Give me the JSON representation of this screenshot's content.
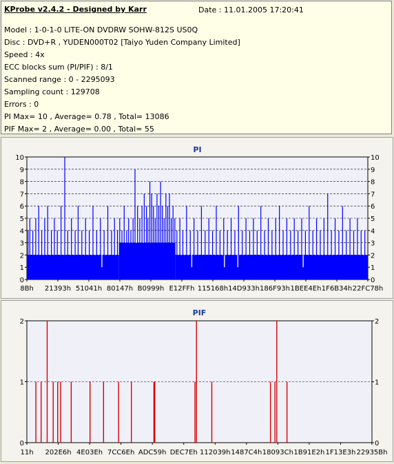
{
  "info": {
    "title": "KProbe v2.4.2 - Designed by Karr",
    "date": "Date : 11.01.2005 17:20:41",
    "lines": [
      "Model : 1-0-1-0 LITE-ON DVDRW SOHW-812S  US0Q",
      "Disc : DVD+R , YUDEN000T02 [Taiyo Yuden Company Limited]",
      "Speed : 4x",
      "ECC blocks sum (PI/PIF) : 8/1",
      "Scanned range : 0 - 2295093",
      "Sampling count : 129708",
      "Errors : 0",
      "PI Max= 10 , Average= 0.78 , Total= 13086",
      "PIF Max= 2 , Average= 0.00 , Total= 55"
    ]
  },
  "colors": {
    "pi": "#0000ff",
    "pif": "#d40000",
    "plot_bg": "#f0f0f8",
    "grid": "#000000",
    "title": "#1a3a9a"
  },
  "chart_data": [
    {
      "type": "bar",
      "title": "PI",
      "ylim": [
        0,
        10
      ],
      "yticks": [
        0,
        1,
        2,
        3,
        4,
        5,
        6,
        7,
        8,
        9,
        10
      ],
      "grid": true,
      "xticks": [
        "8Bh",
        "21393h",
        "51041h",
        "80147h",
        "B0999h",
        "E12FFh",
        "115168h",
        "14D933h",
        "186F93h",
        "1BEE4Eh",
        "1F6B34h",
        "22FC78h"
      ],
      "x_range": [
        0,
        2295093
      ],
      "baseline_levels": [
        {
          "x": [
            0,
            620000
          ],
          "value": 2
        },
        {
          "x": [
            620000,
            1000000
          ],
          "value": 3
        },
        {
          "x": [
            1000000,
            2295093
          ],
          "value": 2
        }
      ],
      "spikes": [
        {
          "x": 8000,
          "value": 4
        },
        {
          "x": 20000,
          "value": 5
        },
        {
          "x": 40000,
          "value": 4
        },
        {
          "x": 60000,
          "value": 5
        },
        {
          "x": 80000,
          "value": 6
        },
        {
          "x": 100000,
          "value": 4
        },
        {
          "x": 120000,
          "value": 5
        },
        {
          "x": 140000,
          "value": 6
        },
        {
          "x": 165000,
          "value": 4
        },
        {
          "x": 185000,
          "value": 5
        },
        {
          "x": 205000,
          "value": 4
        },
        {
          "x": 230000,
          "value": 6
        },
        {
          "x": 255000,
          "value": 10
        },
        {
          "x": 275000,
          "value": 4
        },
        {
          "x": 300000,
          "value": 5
        },
        {
          "x": 325000,
          "value": 4
        },
        {
          "x": 345000,
          "value": 6
        },
        {
          "x": 370000,
          "value": 4
        },
        {
          "x": 395000,
          "value": 5
        },
        {
          "x": 420000,
          "value": 4
        },
        {
          "x": 445000,
          "value": 6
        },
        {
          "x": 470000,
          "value": 4
        },
        {
          "x": 495000,
          "value": 5
        },
        {
          "x": 520000,
          "value": 4
        },
        {
          "x": 545000,
          "value": 6
        },
        {
          "x": 570000,
          "value": 4
        },
        {
          "x": 590000,
          "value": 5
        },
        {
          "x": 610000,
          "value": 4
        },
        {
          "x": 625000,
          "value": 5
        },
        {
          "x": 640000,
          "value": 4
        },
        {
          "x": 655000,
          "value": 6
        },
        {
          "x": 672000,
          "value": 4
        },
        {
          "x": 685000,
          "value": 5
        },
        {
          "x": 700000,
          "value": 4
        },
        {
          "x": 715000,
          "value": 5
        },
        {
          "x": 728000,
          "value": 9
        },
        {
          "x": 745000,
          "value": 6
        },
        {
          "x": 760000,
          "value": 5
        },
        {
          "x": 775000,
          "value": 6
        },
        {
          "x": 790000,
          "value": 7
        },
        {
          "x": 805000,
          "value": 6
        },
        {
          "x": 815000,
          "value": 5
        },
        {
          "x": 828000,
          "value": 8
        },
        {
          "x": 840000,
          "value": 7
        },
        {
          "x": 852000,
          "value": 6
        },
        {
          "x": 864000,
          "value": 5
        },
        {
          "x": 876000,
          "value": 7
        },
        {
          "x": 888000,
          "value": 6
        },
        {
          "x": 900000,
          "value": 8
        },
        {
          "x": 912000,
          "value": 6
        },
        {
          "x": 924000,
          "value": 5
        },
        {
          "x": 936000,
          "value": 7
        },
        {
          "x": 948000,
          "value": 6
        },
        {
          "x": 960000,
          "value": 7
        },
        {
          "x": 972000,
          "value": 5
        },
        {
          "x": 984000,
          "value": 6
        },
        {
          "x": 996000,
          "value": 5
        },
        {
          "x": 1010000,
          "value": 4
        },
        {
          "x": 1030000,
          "value": 5
        },
        {
          "x": 1050000,
          "value": 4
        },
        {
          "x": 1075000,
          "value": 6
        },
        {
          "x": 1100000,
          "value": 4
        },
        {
          "x": 1125000,
          "value": 5
        },
        {
          "x": 1150000,
          "value": 4
        },
        {
          "x": 1175000,
          "value": 6
        },
        {
          "x": 1200000,
          "value": 4
        },
        {
          "x": 1225000,
          "value": 5
        },
        {
          "x": 1250000,
          "value": 4
        },
        {
          "x": 1275000,
          "value": 6
        },
        {
          "x": 1300000,
          "value": 4
        },
        {
          "x": 1325000,
          "value": 5
        },
        {
          "x": 1350000,
          "value": 4
        },
        {
          "x": 1375000,
          "value": 5
        },
        {
          "x": 1400000,
          "value": 4
        },
        {
          "x": 1425000,
          "value": 6
        },
        {
          "x": 1450000,
          "value": 4
        },
        {
          "x": 1475000,
          "value": 5
        },
        {
          "x": 1500000,
          "value": 4
        },
        {
          "x": 1525000,
          "value": 5
        },
        {
          "x": 1550000,
          "value": 4
        },
        {
          "x": 1575000,
          "value": 6
        },
        {
          "x": 1600000,
          "value": 4
        },
        {
          "x": 1625000,
          "value": 5
        },
        {
          "x": 1650000,
          "value": 4
        },
        {
          "x": 1675000,
          "value": 5
        },
        {
          "x": 1700000,
          "value": 6
        },
        {
          "x": 1725000,
          "value": 4
        },
        {
          "x": 1750000,
          "value": 5
        },
        {
          "x": 1775000,
          "value": 4
        },
        {
          "x": 1800000,
          "value": 5
        },
        {
          "x": 1825000,
          "value": 4
        },
        {
          "x": 1850000,
          "value": 5
        },
        {
          "x": 1875000,
          "value": 4
        },
        {
          "x": 1900000,
          "value": 6
        },
        {
          "x": 1925000,
          "value": 4
        },
        {
          "x": 1950000,
          "value": 5
        },
        {
          "x": 1975000,
          "value": 4
        },
        {
          "x": 2000000,
          "value": 5
        },
        {
          "x": 2025000,
          "value": 7
        },
        {
          "x": 2050000,
          "value": 4
        },
        {
          "x": 2075000,
          "value": 5
        },
        {
          "x": 2100000,
          "value": 4
        },
        {
          "x": 2125000,
          "value": 6
        },
        {
          "x": 2150000,
          "value": 4
        },
        {
          "x": 2175000,
          "value": 5
        },
        {
          "x": 2200000,
          "value": 4
        },
        {
          "x": 2225000,
          "value": 5
        },
        {
          "x": 2250000,
          "value": 4
        },
        {
          "x": 2275000,
          "value": 4
        }
      ],
      "dips": [
        {
          "x": 505000,
          "value": 1
        },
        {
          "x": 1330000,
          "value": 1
        },
        {
          "x": 1110000,
          "value": 1
        },
        {
          "x": 1860000,
          "value": 1
        },
        {
          "x": 1420000,
          "value": 1
        }
      ]
    },
    {
      "type": "bar",
      "title": "PIF",
      "ylim": [
        0,
        2
      ],
      "yticks": [
        0,
        1,
        2
      ],
      "grid": true,
      "xticks": [
        "11h",
        "202E6h",
        "4E03Eh",
        "7CC6Eh",
        "ADC59h",
        "DEC7Eh",
        "112039h",
        "1487C4h",
        "18093Ch",
        "1B91E2h",
        "1F13E3h",
        "22935Bh"
      ],
      "x_range": [
        0,
        2295093
      ],
      "bars": [
        {
          "x": 60000,
          "value": 1
        },
        {
          "x": 95000,
          "value": 1
        },
        {
          "x": 135000,
          "value": 2
        },
        {
          "x": 175000,
          "value": 1
        },
        {
          "x": 205000,
          "value": 1
        },
        {
          "x": 225000,
          "value": 1
        },
        {
          "x": 295000,
          "value": 1
        },
        {
          "x": 420000,
          "value": 1
        },
        {
          "x": 510000,
          "value": 1
        },
        {
          "x": 610000,
          "value": 1
        },
        {
          "x": 695000,
          "value": 1
        },
        {
          "x": 845000,
          "value": 1
        },
        {
          "x": 851000,
          "value": 1
        },
        {
          "x": 1118000,
          "value": 1
        },
        {
          "x": 1128000,
          "value": 2
        },
        {
          "x": 1230000,
          "value": 1
        },
        {
          "x": 1620000,
          "value": 1
        },
        {
          "x": 1650000,
          "value": 1
        },
        {
          "x": 1662000,
          "value": 2
        },
        {
          "x": 1730000,
          "value": 1
        }
      ]
    }
  ]
}
